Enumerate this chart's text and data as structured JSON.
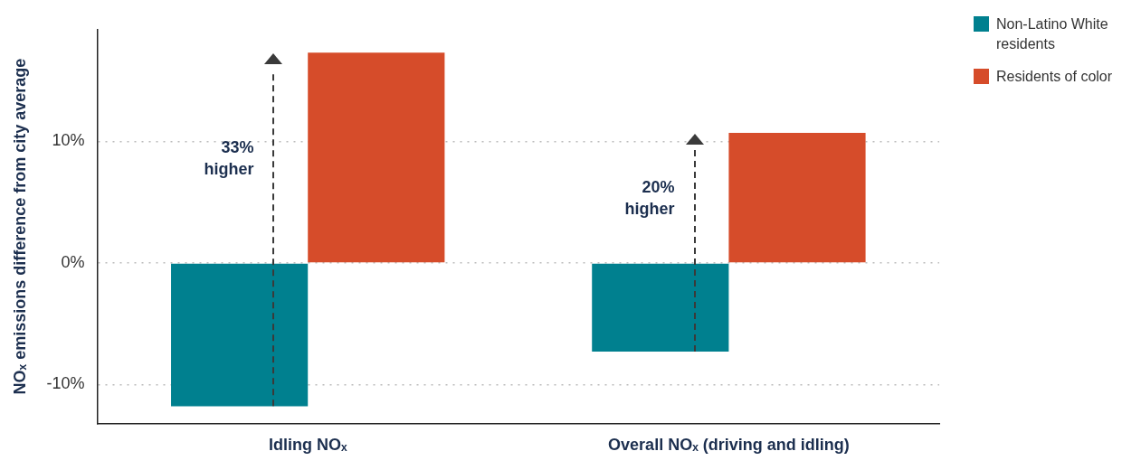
{
  "chart_data": {
    "type": "bar",
    "categories": [
      "Idling NOₓ",
      "Overall NOₓ (driving and idling)"
    ],
    "series": [
      {
        "name": "Non-Latino White residents",
        "color": "#00808f",
        "values": [
          -11.8,
          -7.3
        ]
      },
      {
        "name": "Residents of color",
        "color": "#d64c2a",
        "values": [
          17.3,
          10.7
        ]
      }
    ],
    "ylabel": "NOₓ emissions difference from city average",
    "ylim": [
      -13.2,
      19.2
    ],
    "yticks": [
      {
        "value": -10,
        "label": "-10%"
      },
      {
        "value": 0,
        "label": "0%"
      },
      {
        "value": 10,
        "label": "10%"
      }
    ],
    "grid": "y",
    "legend": "top right",
    "annotations": [
      "33% higher",
      "20% higher"
    ]
  }
}
